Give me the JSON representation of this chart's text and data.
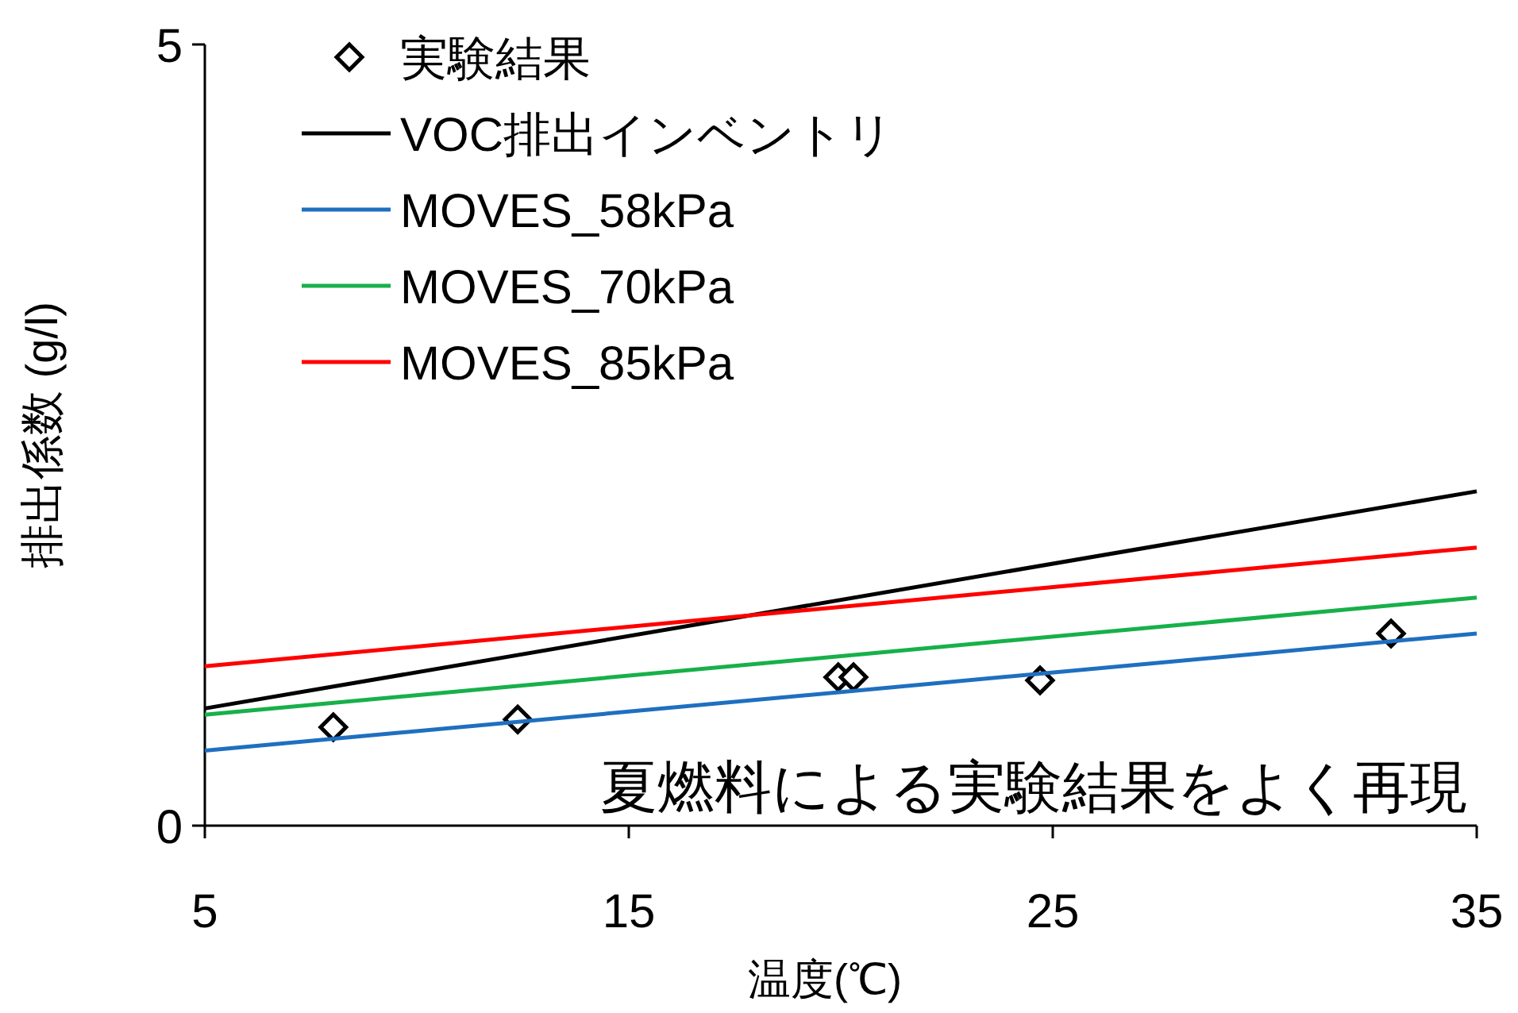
{
  "chart_data": {
    "type": "line",
    "ylabel": "排出係数 (g/l)",
    "xlabel": "温度(℃)",
    "xlim": [
      5,
      35
    ],
    "xticks": [
      5,
      15,
      25,
      35
    ],
    "ylim": [
      0,
      5
    ],
    "yticks": [
      0,
      5
    ],
    "grid": false,
    "legend": "top left",
    "series": [
      {
        "name": "実験結果",
        "type": "scatter",
        "marker": "diamond",
        "color": "#000000",
        "x": [
          8.03,
          12.38,
          19.94,
          20.3,
          24.7,
          32.98
        ],
        "values": [
          0.63,
          0.68,
          0.95,
          0.95,
          0.93,
          1.23
        ]
      },
      {
        "name": "VOC排出インベントリ",
        "color": "#000000",
        "x": [
          5,
          35
        ],
        "values": [
          0.75,
          2.14
        ]
      },
      {
        "name": "MOVES_58kPa",
        "color": "#1f6fc0",
        "x": [
          5,
          35
        ],
        "values": [
          0.48,
          1.23
        ]
      },
      {
        "name": "MOVES_70kPa",
        "color": "#17b04a",
        "x": [
          5,
          35
        ],
        "values": [
          0.71,
          1.46
        ]
      },
      {
        "name": "MOVES_85kPa",
        "color": "#ff0000",
        "x": [
          5,
          35
        ],
        "values": [
          1.02,
          1.78
        ]
      }
    ],
    "annotations": [
      "夏燃料による実験結果をよく再現"
    ]
  }
}
